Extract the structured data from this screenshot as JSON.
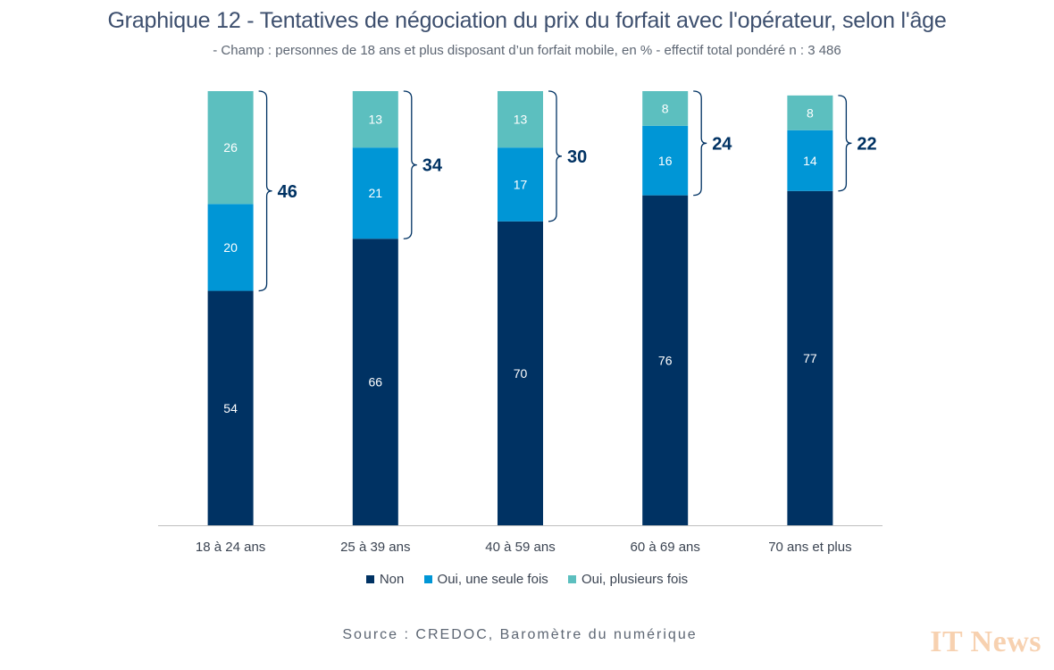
{
  "title": "Graphique 12 - Tentatives de négociation du prix du forfait avec l'opérateur, selon l'âge",
  "subtitle": "- Champ : personnes de 18 ans et plus disposant d’un forfait mobile, en % - effectif total pondéré n : 3 486",
  "source": "Source : CREDOC, Baromètre du numérique",
  "watermark": "IT News",
  "colors": {
    "non": "#003263",
    "oui_une": "#0096d6",
    "oui_plusieurs": "#5cbfbf",
    "bracket": "#003263",
    "axis": "#bfbfbf"
  },
  "chart_data": {
    "type": "bar",
    "stacked": true,
    "categories": [
      "18 à 24 ans",
      "25 à 39 ans",
      "40 à 59 ans",
      "60 à 69 ans",
      "70 ans et plus"
    ],
    "series": [
      {
        "name": "Non",
        "values": [
          54,
          66,
          70,
          76,
          77
        ]
      },
      {
        "name": "Oui, une seule fois",
        "values": [
          20,
          21,
          17,
          16,
          14
        ]
      },
      {
        "name": "Oui, plusieurs fois",
        "values": [
          26,
          13,
          13,
          8,
          8
        ]
      }
    ],
    "totals_oui": [
      46,
      34,
      30,
      24,
      22
    ],
    "ylim": [
      0,
      100
    ],
    "legend_position": "bottom",
    "grid": false
  }
}
